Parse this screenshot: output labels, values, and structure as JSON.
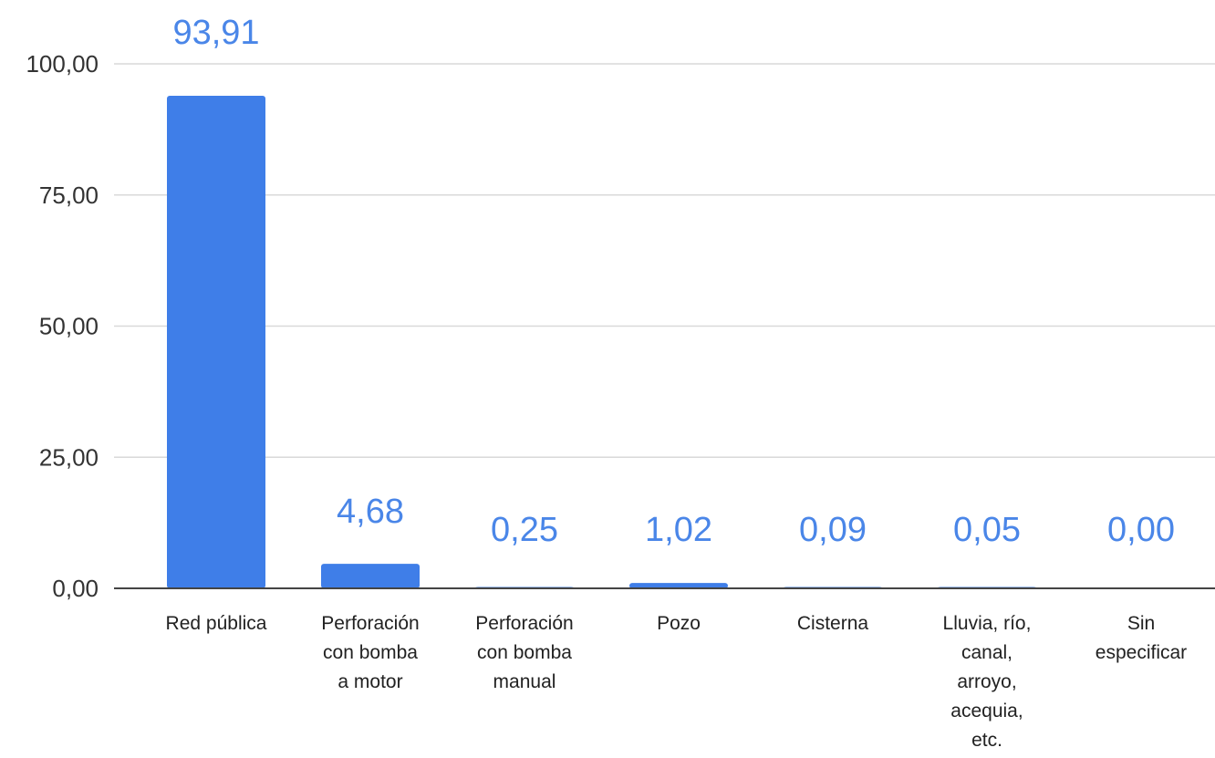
{
  "chart_data": {
    "type": "bar",
    "categories": [
      "Red pública",
      "Perforación con bomba a motor",
      "Perforación con bomba manual",
      "Pozo",
      "Cisterna",
      "Lluvia, río, canal, arroyo, acequia, etc.",
      "Sin especificar"
    ],
    "category_lines": [
      [
        "Red pública"
      ],
      [
        "Perforación",
        "con bomba",
        "a motor"
      ],
      [
        "Perforación",
        "con bomba",
        "manual"
      ],
      [
        "Pozo"
      ],
      [
        "Cisterna"
      ],
      [
        "Lluvia, río,",
        "canal,",
        "arroyo,",
        "acequia,",
        "etc."
      ],
      [
        "Sin",
        "especificar"
      ]
    ],
    "values": [
      93.91,
      4.68,
      0.25,
      1.02,
      0.09,
      0.05,
      0.0
    ],
    "data_labels": [
      "93,91",
      "4,68",
      "0,25",
      "1,02",
      "0,09",
      "0,05",
      "0,00"
    ],
    "ylim": [
      0,
      100
    ],
    "y_ticks": [
      0,
      25,
      50,
      75,
      100
    ],
    "y_tick_labels": [
      "0,00",
      "25,00",
      "50,00",
      "75,00",
      "100,00"
    ],
    "grid": true,
    "legend": "none",
    "title": "",
    "xlabel": "",
    "ylabel": "",
    "colors": {
      "bar": "#3f7ee8",
      "data_label": "#4a86e8",
      "grid": "#d9d9d9",
      "axis": "#444444"
    }
  }
}
